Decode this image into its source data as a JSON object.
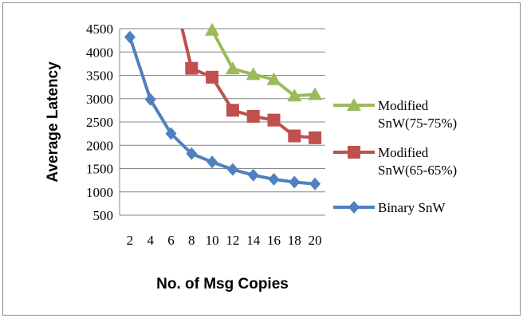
{
  "chart_data": {
    "type": "line",
    "xlabel": "No. of Msg Copies",
    "ylabel": "Average Latency",
    "categories": [
      "2",
      "4",
      "6",
      "8",
      "10",
      "12",
      "14",
      "16",
      "18",
      "20"
    ],
    "ylim": [
      500,
      4500
    ],
    "yticks": [
      500,
      1000,
      1500,
      2000,
      2500,
      3000,
      3500,
      4000,
      4500
    ],
    "grid": true,
    "legend_position": "right",
    "series": [
      {
        "name": "Modified SnW(75-75%)",
        "name_lines": [
          "Modified",
          "SnW(75-75%)"
        ],
        "color": "#9bbb59",
        "marker": "triangle",
        "values": [
          null,
          null,
          null,
          null,
          4470,
          3640,
          3520,
          3410,
          3060,
          3090
        ]
      },
      {
        "name": "Modified SnW(65-65%)",
        "name_lines": [
          "Modified",
          "SnW(65-65%)"
        ],
        "color": "#c0504d",
        "marker": "square",
        "values": [
          null,
          null,
          null,
          3650,
          3460,
          2750,
          2620,
          2540,
          2200,
          2160
        ],
        "lead_in": {
          "x": "6",
          "y": 5500
        }
      },
      {
        "name": "Binary SnW",
        "name_lines": [
          "Binary SnW"
        ],
        "color": "#4f81bd",
        "marker": "diamond",
        "values": [
          4320,
          2980,
          2250,
          1820,
          1640,
          1480,
          1360,
          1270,
          1210,
          1170
        ]
      }
    ]
  }
}
